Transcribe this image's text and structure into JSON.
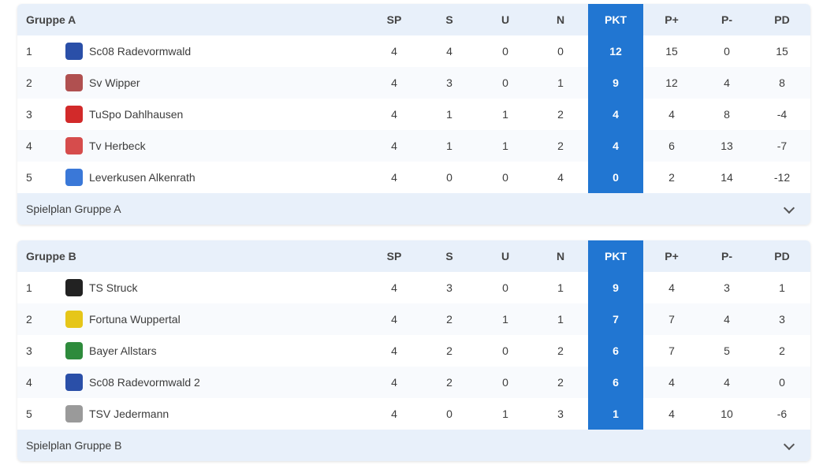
{
  "columns": [
    "SP",
    "S",
    "U",
    "N",
    "PKT",
    "P+",
    "P-",
    "PD"
  ],
  "colors": {
    "header_bg": "#e8f0fa",
    "pkt_bg": "#2176d2"
  },
  "groups": [
    {
      "title": "Gruppe A",
      "footer": "Spielplan Gruppe A",
      "rows": [
        {
          "rank": "1",
          "team": "Sc08 Radevormwald",
          "logo": "#2a4fa8",
          "vals": [
            "4",
            "4",
            "0",
            "0",
            "12",
            "15",
            "0",
            "15"
          ]
        },
        {
          "rank": "2",
          "team": "Sv Wipper",
          "logo": "#b05050",
          "vals": [
            "4",
            "3",
            "0",
            "1",
            "9",
            "12",
            "4",
            "8"
          ]
        },
        {
          "rank": "3",
          "team": "TuSpo Dahlhausen",
          "logo": "#d22a2a",
          "vals": [
            "4",
            "1",
            "1",
            "2",
            "4",
            "4",
            "8",
            "-4"
          ]
        },
        {
          "rank": "4",
          "team": "Tv Herbeck",
          "logo": "#d64c4c",
          "vals": [
            "4",
            "1",
            "1",
            "2",
            "4",
            "6",
            "13",
            "-7"
          ]
        },
        {
          "rank": "5",
          "team": "Leverkusen Alkenrath",
          "logo": "#3a78d8",
          "vals": [
            "4",
            "0",
            "0",
            "4",
            "0",
            "2",
            "14",
            "-12"
          ]
        }
      ]
    },
    {
      "title": "Gruppe B",
      "footer": "Spielplan Gruppe B",
      "rows": [
        {
          "rank": "1",
          "team": "TS Struck",
          "logo": "#222222",
          "vals": [
            "4",
            "3",
            "0",
            "1",
            "9",
            "4",
            "3",
            "1"
          ]
        },
        {
          "rank": "2",
          "team": "Fortuna Wuppertal",
          "logo": "#e6c619",
          "vals": [
            "4",
            "2",
            "1",
            "1",
            "7",
            "7",
            "4",
            "3"
          ]
        },
        {
          "rank": "3",
          "team": "Bayer Allstars",
          "logo": "#2e8b3c",
          "vals": [
            "4",
            "2",
            "0",
            "2",
            "6",
            "7",
            "5",
            "2"
          ]
        },
        {
          "rank": "4",
          "team": "Sc08 Radevormwald 2",
          "logo": "#2a4fa8",
          "vals": [
            "4",
            "2",
            "0",
            "2",
            "6",
            "4",
            "4",
            "0"
          ]
        },
        {
          "rank": "5",
          "team": "TSV Jedermann",
          "logo": "#9a9a9a",
          "vals": [
            "4",
            "0",
            "1",
            "3",
            "1",
            "4",
            "10",
            "-6"
          ]
        }
      ]
    }
  ]
}
